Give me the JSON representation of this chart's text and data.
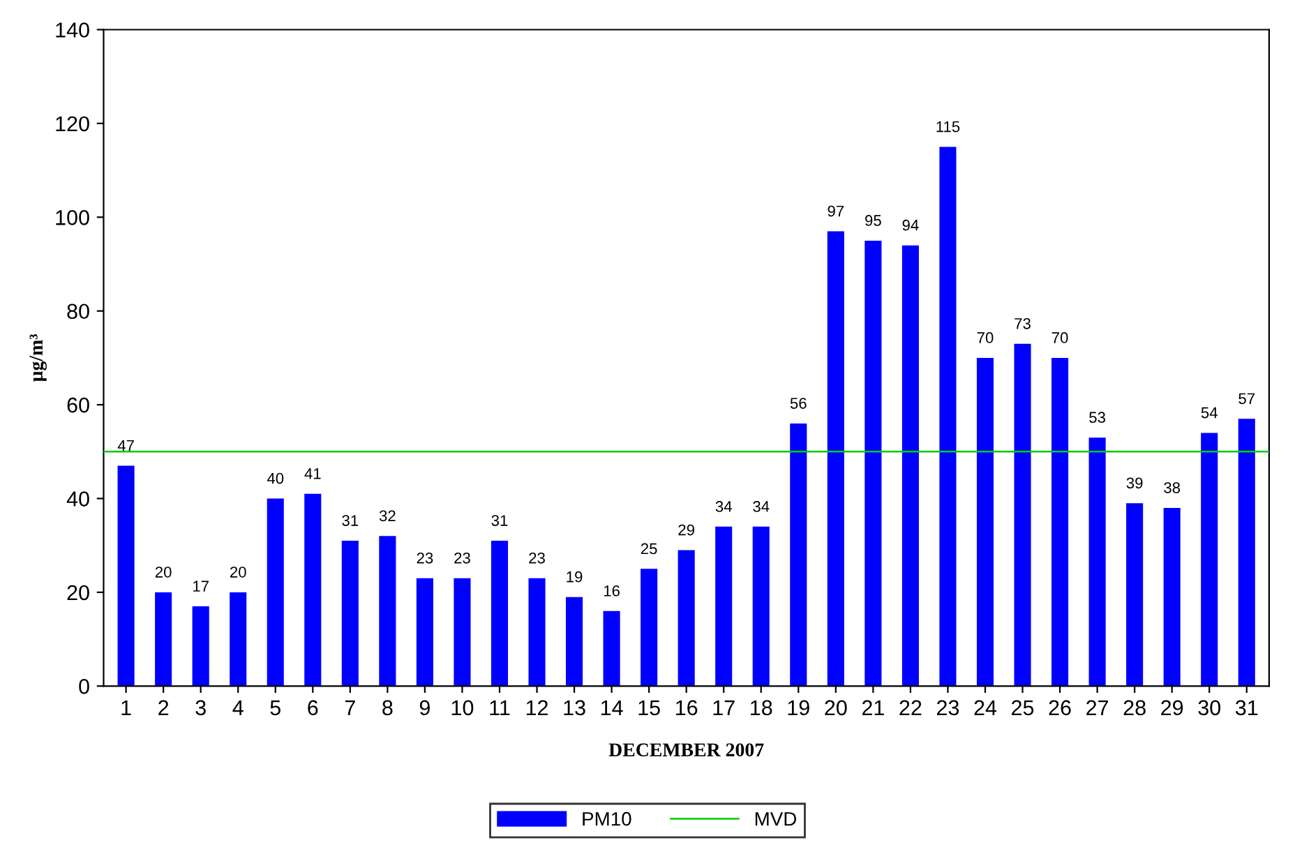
{
  "chart_data": {
    "type": "bar",
    "xlabel": "DECEMBER 2007",
    "ylabel": "μg/m³",
    "categories": [
      "1",
      "2",
      "3",
      "4",
      "5",
      "6",
      "7",
      "8",
      "9",
      "10",
      "11",
      "12",
      "13",
      "14",
      "15",
      "16",
      "17",
      "18",
      "19",
      "20",
      "21",
      "22",
      "23",
      "24",
      "25",
      "26",
      "27",
      "28",
      "29",
      "30",
      "31"
    ],
    "series": [
      {
        "name": "PM10",
        "color": "#0000ff",
        "values": [
          47,
          20,
          17,
          20,
          40,
          41,
          31,
          32,
          23,
          23,
          31,
          23,
          19,
          16,
          25,
          29,
          34,
          34,
          56,
          97,
          95,
          94,
          115,
          70,
          73,
          70,
          53,
          39,
          38,
          54,
          57
        ]
      }
    ],
    "ref_lines": [
      {
        "axis": "y",
        "value": 50,
        "label": "MVD",
        "color": "#00cc00",
        "line_style": "solid"
      }
    ],
    "ylim": [
      0,
      140
    ],
    "yticks": [
      0,
      20,
      40,
      60,
      80,
      100,
      120,
      140
    ],
    "data_labels": true,
    "legend": "bottom",
    "grid": false
  }
}
